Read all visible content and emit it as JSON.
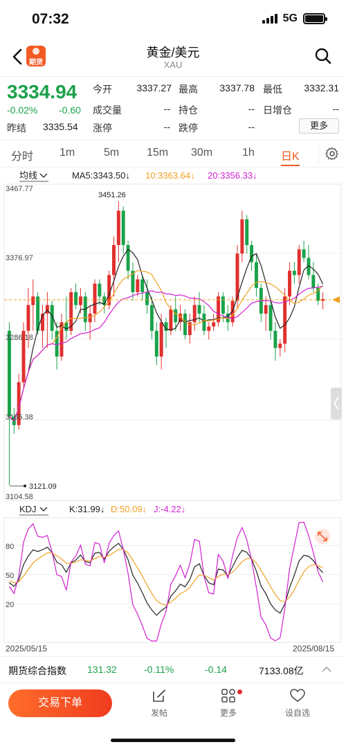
{
  "status": {
    "time": "07:32",
    "network": "5G"
  },
  "nav": {
    "title": "黄金/美元",
    "subtitle": "XAU",
    "app_logo_text": "期货"
  },
  "quote": {
    "price": "3334.94",
    "change_pct": "-0.02%",
    "change": "-0.60",
    "prev_close_label": "昨结",
    "prev_close": "3335.54",
    "open_label": "今开",
    "open": "3337.27",
    "high_label": "最高",
    "high": "3337.78",
    "low_label": "最低",
    "low": "3332.31",
    "volume_label": "成交量",
    "volume": "--",
    "position_label": "持仓",
    "position": "--",
    "daily_add_label": "日增仓",
    "daily_add": "--",
    "limit_up_label": "涨停",
    "limit_up": "--",
    "limit_down_label": "跌停",
    "limit_down": "--",
    "more_label": "更多"
  },
  "periods": [
    {
      "label": "分时",
      "active": false
    },
    {
      "label": "1m",
      "active": false
    },
    {
      "label": "5m",
      "active": false
    },
    {
      "label": "15m",
      "active": false
    },
    {
      "label": "30m",
      "active": false
    },
    {
      "label": "1h",
      "active": false
    },
    {
      "label": "日K",
      "active": true
    }
  ],
  "main_chart": {
    "indicator_button": "均线",
    "ma5": "MA5:3343.50↓",
    "ma10": "10:3363.64↓",
    "ma20": "20:3356.33↓",
    "y_ticks": [
      "3467.77",
      "3376.97",
      "3286.18",
      "3195.38",
      "3104.58"
    ],
    "high_marker": "3451.26",
    "low_marker": "3121.09",
    "colors": {
      "up": "#e0302e",
      "down": "#1aa24a",
      "ma5": "#222222",
      "ma10": "#f0a020",
      "ma20": "#d21fd0",
      "last": "#f0a020"
    }
  },
  "kdj_chart": {
    "indicator_button": "KDJ",
    "k": "K:31.99↓",
    "d": "D:50.09↓",
    "j": "J:-4.22↓",
    "y_ticks": [
      "80",
      "50",
      "20"
    ],
    "date_start": "2025/05/15",
    "date_end": "2025/08/15"
  },
  "chart_data": {
    "type": "candlestick",
    "ylim": [
      3104.58,
      3467.77
    ],
    "candles": [
      [
        3300,
        3310,
        3120,
        3200
      ],
      [
        3200,
        3210,
        3180,
        3190
      ],
      [
        3190,
        3250,
        3185,
        3240
      ],
      [
        3240,
        3310,
        3235,
        3300
      ],
      [
        3300,
        3350,
        3280,
        3330
      ],
      [
        3330,
        3360,
        3300,
        3340
      ],
      [
        3340,
        3345,
        3295,
        3300
      ],
      [
        3300,
        3330,
        3280,
        3320
      ],
      [
        3320,
        3345,
        3280,
        3330
      ],
      [
        3330,
        3335,
        3290,
        3300
      ],
      [
        3300,
        3310,
        3255,
        3270
      ],
      [
        3270,
        3320,
        3265,
        3310
      ],
      [
        3310,
        3340,
        3290,
        3300
      ],
      [
        3300,
        3350,
        3295,
        3345
      ],
      [
        3345,
        3355,
        3325,
        3330
      ],
      [
        3330,
        3350,
        3320,
        3340
      ],
      [
        3340,
        3345,
        3300,
        3310
      ],
      [
        3310,
        3330,
        3290,
        3320
      ],
      [
        3320,
        3360,
        3310,
        3355
      ],
      [
        3355,
        3360,
        3330,
        3340
      ],
      [
        3340,
        3345,
        3320,
        3330
      ],
      [
        3330,
        3370,
        3325,
        3365
      ],
      [
        3365,
        3410,
        3340,
        3400
      ],
      [
        3400,
        3451,
        3380,
        3440
      ],
      [
        3440,
        3445,
        3390,
        3400
      ],
      [
        3400,
        3405,
        3360,
        3370
      ],
      [
        3370,
        3380,
        3335,
        3345
      ],
      [
        3345,
        3365,
        3340,
        3360
      ],
      [
        3360,
        3365,
        3335,
        3345
      ],
      [
        3345,
        3360,
        3320,
        3330
      ],
      [
        3330,
        3340,
        3290,
        3300
      ],
      [
        3300,
        3310,
        3260,
        3270
      ],
      [
        3270,
        3320,
        3255,
        3310
      ],
      [
        3310,
        3315,
        3280,
        3300
      ],
      [
        3300,
        3330,
        3295,
        3325
      ],
      [
        3325,
        3340,
        3300,
        3310
      ],
      [
        3310,
        3330,
        3300,
        3320
      ],
      [
        3320,
        3325,
        3290,
        3295
      ],
      [
        3295,
        3320,
        3285,
        3310
      ],
      [
        3310,
        3340,
        3300,
        3330
      ],
      [
        3330,
        3345,
        3310,
        3320
      ],
      [
        3320,
        3330,
        3295,
        3300
      ],
      [
        3300,
        3310,
        3290,
        3305
      ],
      [
        3305,
        3320,
        3300,
        3310
      ],
      [
        3310,
        3345,
        3305,
        3340
      ],
      [
        3340,
        3345,
        3310,
        3320
      ],
      [
        3320,
        3330,
        3300,
        3310
      ],
      [
        3310,
        3340,
        3305,
        3335
      ],
      [
        3335,
        3400,
        3325,
        3390
      ],
      [
        3390,
        3440,
        3380,
        3430
      ],
      [
        3430,
        3435,
        3390,
        3400
      ],
      [
        3400,
        3405,
        3370,
        3380
      ],
      [
        3380,
        3390,
        3340,
        3350
      ],
      [
        3350,
        3355,
        3310,
        3320
      ],
      [
        3320,
        3340,
        3300,
        3330
      ],
      [
        3330,
        3335,
        3290,
        3300
      ],
      [
        3300,
        3310,
        3265,
        3280
      ],
      [
        3280,
        3290,
        3270,
        3285
      ],
      [
        3285,
        3350,
        3275,
        3340
      ],
      [
        3340,
        3380,
        3330,
        3370
      ],
      [
        3370,
        3380,
        3355,
        3365
      ],
      [
        3365,
        3400,
        3355,
        3395
      ],
      [
        3395,
        3405,
        3380,
        3385
      ],
      [
        3385,
        3400,
        3360,
        3365
      ],
      [
        3365,
        3380,
        3345,
        3350
      ],
      [
        3350,
        3355,
        3330,
        3335
      ],
      [
        3335,
        3345,
        3325,
        3337
      ]
    ]
  }
}
